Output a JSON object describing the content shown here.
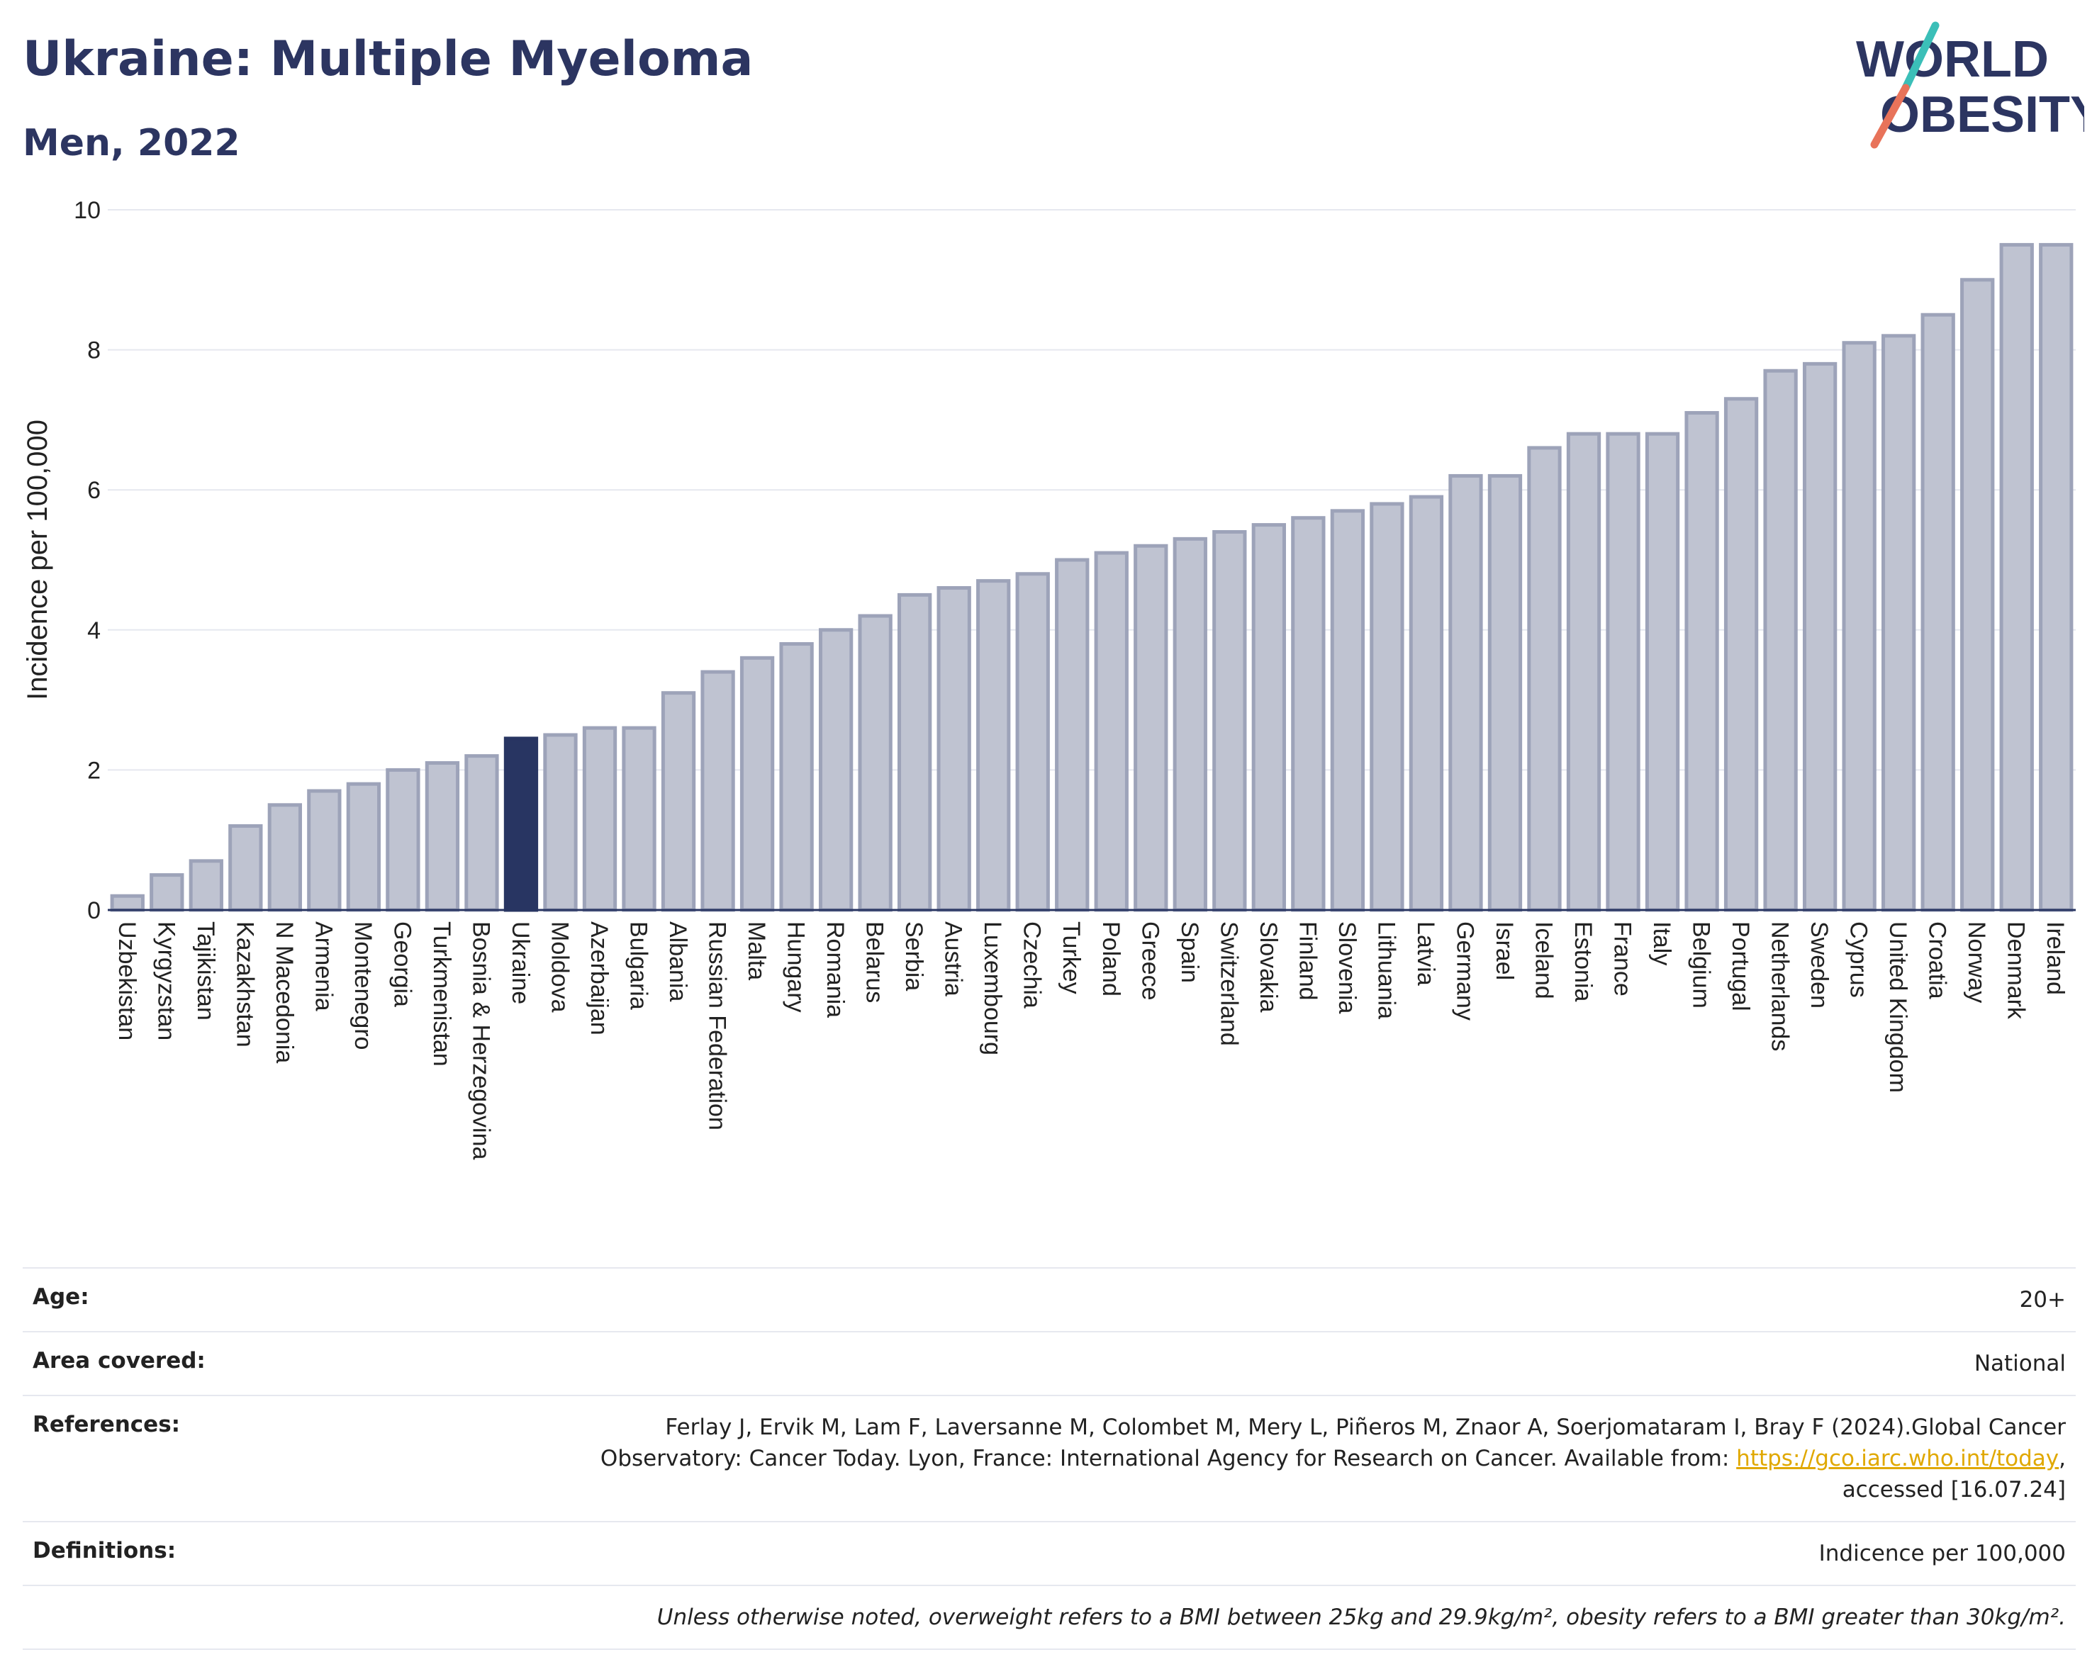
{
  "header": {
    "title": "Ukraine: Multiple Myeloma",
    "subtitle": "Men, 2022"
  },
  "logo": {
    "line1": "WORLD",
    "line2": "OBESITY",
    "slash_colors": [
      "#3bbfb8",
      "#e8735a"
    ]
  },
  "colors": {
    "highlight": "#283562",
    "bar_fill": "#bfc3d1",
    "bar_stroke": "#9da3b9",
    "text": "#2c3561",
    "grid": "#e6e8ef"
  },
  "chart_data": {
    "type": "bar",
    "ylabel": "Incidence per 100,000",
    "ylim": [
      0,
      10
    ],
    "yticks": [
      0,
      2,
      4,
      6,
      8,
      10
    ],
    "grid": true,
    "highlight": "Ukraine",
    "categories": [
      "Uzbekistan",
      "Kyrgyzstan",
      "Tajikistan",
      "Kazakhstan",
      "N Macedonia",
      "Armenia",
      "Montenegro",
      "Georgia",
      "Turkmenistan",
      "Bosnia & Herzegovina",
      "Ukraine",
      "Moldova",
      "Azerbaijan",
      "Bulgaria",
      "Albania",
      "Russian Federation",
      "Malta",
      "Hungary",
      "Romania",
      "Belarus",
      "Serbia",
      "Austria",
      "Luxembourg",
      "Czechia",
      "Turkey",
      "Poland",
      "Greece",
      "Spain",
      "Switzerland",
      "Slovakia",
      "Finland",
      "Slovenia",
      "Lithuania",
      "Latvia",
      "Germany",
      "Israel",
      "Iceland",
      "Estonia",
      "France",
      "Italy",
      "Belgium",
      "Portugal",
      "Netherlands",
      "Sweden",
      "Cyprus",
      "United Kingdom",
      "Croatia",
      "Norway",
      "Denmark",
      "Ireland"
    ],
    "values": [
      0.2,
      0.5,
      0.7,
      1.2,
      1.5,
      1.7,
      1.8,
      2.0,
      2.1,
      2.2,
      2.45,
      2.5,
      2.6,
      2.6,
      3.1,
      3.4,
      3.6,
      3.8,
      4.0,
      4.2,
      4.5,
      4.6,
      4.7,
      4.8,
      5.0,
      5.1,
      5.2,
      5.3,
      5.4,
      5.5,
      5.6,
      5.7,
      5.8,
      5.9,
      6.2,
      6.2,
      6.6,
      6.8,
      6.8,
      6.8,
      7.1,
      7.3,
      7.7,
      7.8,
      8.1,
      8.2,
      8.5,
      9.0,
      9.5,
      9.5
    ]
  },
  "meta": {
    "age_label": "Age:",
    "age_value": "20+",
    "area_label": "Area covered:",
    "area_value": "National",
    "references_label": "References:",
    "references_text1": "Ferlay J, Ervik M, Lam F, Laversanne M, Colombet M, Mery L, Piñeros M, Znaor A, Soerjomataram I, Bray F (2024).Global Cancer",
    "references_text2": "Observatory: Cancer Today. Lyon, France: International Agency for Research on Cancer. Available from: ",
    "references_link": "https://gco.iarc.who.int/today",
    "references_text3": "accessed [16.07.24]",
    "definitions_label": "Definitions:",
    "definitions_value": "Indicence per 100,000",
    "note": "Unless otherwise noted, overweight refers to a BMI between 25kg and 29.9kg/m², obesity refers to a BMI greater than 30kg/m²."
  }
}
